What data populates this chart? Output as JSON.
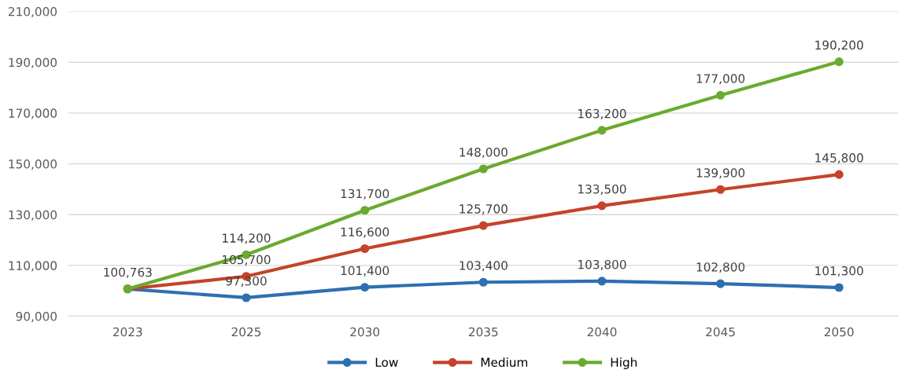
{
  "chart_data": {
    "type": "line",
    "categories": [
      "2023",
      "2025",
      "2030",
      "2035",
      "2040",
      "2045",
      "2050"
    ],
    "series": [
      {
        "name": "Low",
        "color": "#2e6fb0",
        "values": [
          100763,
          97300,
          101400,
          103400,
          103800,
          102800,
          101300
        ],
        "value_labels": [
          "100,763",
          "97,300",
          "101,400",
          "103,400",
          "103,800",
          "102,800",
          "101,300"
        ]
      },
      {
        "name": "Medium",
        "color": "#c4432a",
        "values": [
          100763,
          105700,
          116600,
          125700,
          133500,
          139900,
          145800
        ],
        "value_labels": [
          null,
          "105,700",
          "116,600",
          "125,700",
          "133,500",
          "139,900",
          "145,800"
        ]
      },
      {
        "name": "High",
        "color": "#6aaa2e",
        "values": [
          100763,
          114200,
          131700,
          148000,
          163200,
          177000,
          190200
        ],
        "value_labels": [
          null,
          "114,200",
          "131,700",
          "148,000",
          "163,200",
          "177,000",
          "190,200"
        ]
      }
    ],
    "ylim": [
      90000,
      210000
    ],
    "yticks": [
      {
        "value": 90000,
        "label": "90,000"
      },
      {
        "value": 110000,
        "label": "110,000"
      },
      {
        "value": 130000,
        "label": "130,000"
      },
      {
        "value": 150000,
        "label": "150,000"
      },
      {
        "value": 170000,
        "label": "170,000"
      },
      {
        "value": 190000,
        "label": "190,000"
      },
      {
        "value": 210000,
        "label": "210,000"
      }
    ],
    "grid": "y",
    "legend": "bottom",
    "marker": "circle",
    "line_style": "solid"
  }
}
